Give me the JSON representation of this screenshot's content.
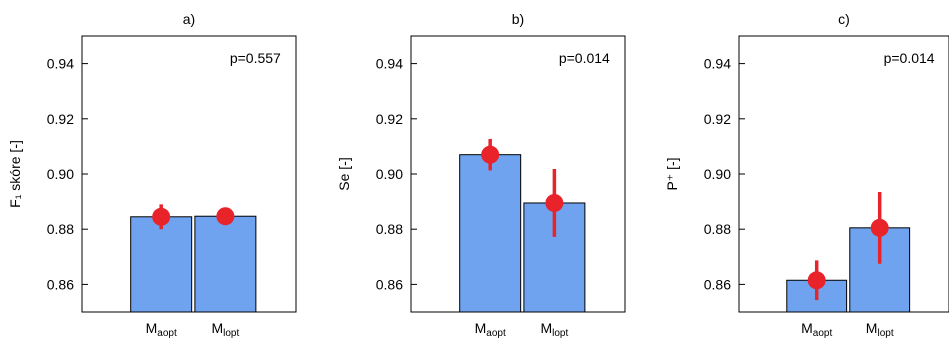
{
  "chart_data": [
    {
      "type": "bar",
      "title": "a)",
      "ylabel": "F₁ skóre [-]",
      "annotation": "p=0.557",
      "ylim": [
        0.85,
        0.95
      ],
      "yticks": [
        "0.86",
        "0.88",
        "0.90",
        "0.92",
        "0.94"
      ],
      "categories": [
        {
          "main": "M",
          "sub": "aopt"
        },
        {
          "main": "M",
          "sub": "lopt"
        }
      ],
      "values": [
        0.8845,
        0.8847
      ],
      "markers": [
        0.8845,
        0.8847
      ],
      "errors": [
        0.0045,
        0.0015
      ],
      "bar_color": "#6fa3ef",
      "marker_color": "#e8232a"
    },
    {
      "type": "bar",
      "title": "b)",
      "ylabel": "Se [-]",
      "annotation": "p=0.014",
      "ylim": [
        0.85,
        0.95
      ],
      "yticks": [
        "0.86",
        "0.88",
        "0.90",
        "0.92",
        "0.94"
      ],
      "categories": [
        {
          "main": "M",
          "sub": "aopt"
        },
        {
          "main": "M",
          "sub": "lopt"
        }
      ],
      "values": [
        0.907,
        0.8895
      ],
      "markers": [
        0.907,
        0.8895
      ],
      "errors": [
        0.0057,
        0.0123
      ],
      "bar_color": "#6fa3ef",
      "marker_color": "#e8232a"
    },
    {
      "type": "bar",
      "title": "c)",
      "ylabel": "P⁺ [-]",
      "annotation": "p=0.014",
      "ylim": [
        0.85,
        0.95
      ],
      "yticks": [
        "0.86",
        "0.88",
        "0.90",
        "0.92",
        "0.94"
      ],
      "categories": [
        {
          "main": "M",
          "sub": "aopt"
        },
        {
          "main": "M",
          "sub": "lopt"
        }
      ],
      "values": [
        0.8615,
        0.8805
      ],
      "markers": [
        0.8615,
        0.8805
      ],
      "errors": [
        0.0072,
        0.013
      ],
      "bar_color": "#6fa3ef",
      "marker_color": "#e8232a"
    }
  ]
}
